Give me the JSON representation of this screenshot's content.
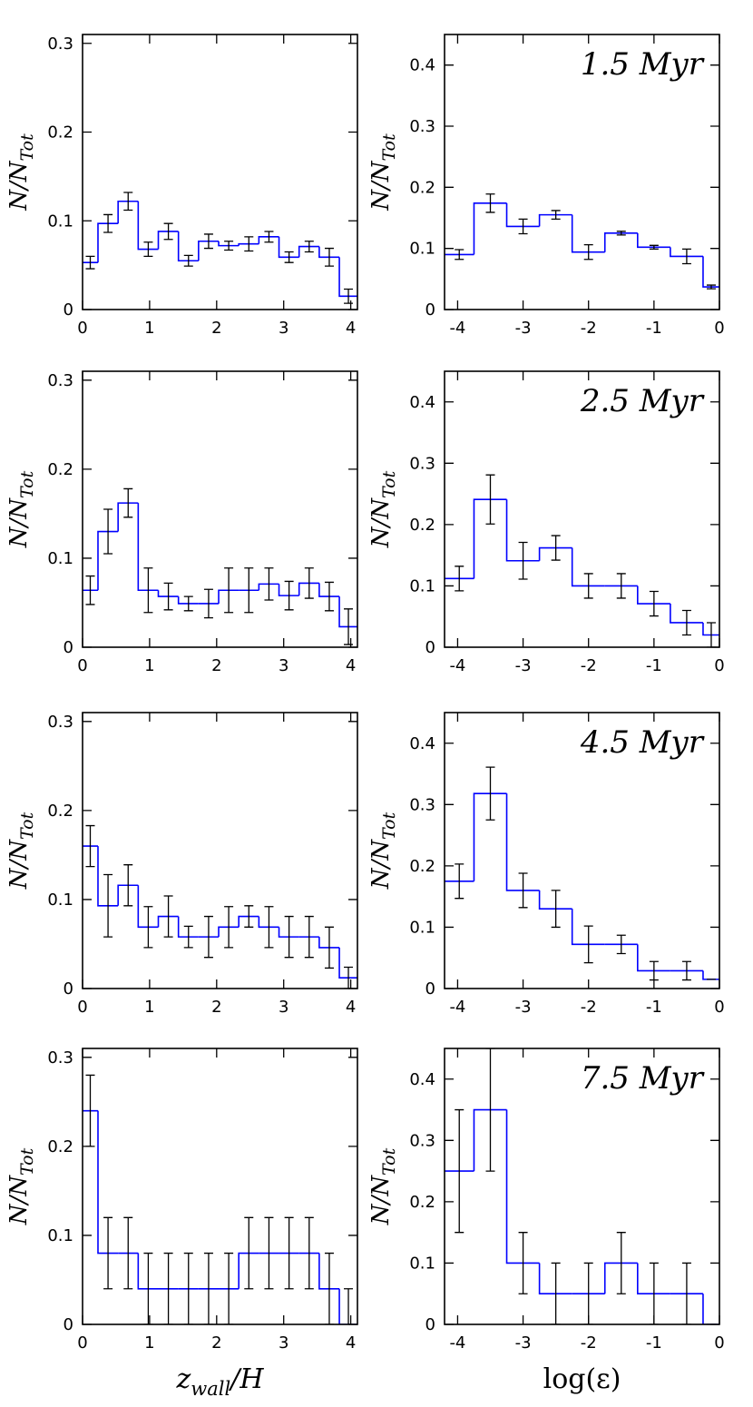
{
  "chart_data": [
    {
      "type": "histogram",
      "color": "#0000ff",
      "xlim": [
        0,
        4.1
      ],
      "xticks": [
        0,
        1,
        2,
        3,
        4
      ],
      "ylim": [
        0,
        0.31
      ],
      "yticks": [
        0,
        0.1,
        0.2,
        0.3
      ],
      "ylabel": "N/N",
      "ylabel_sub": "Tot",
      "bins": [
        0,
        0.23,
        0.53,
        0.83,
        1.13,
        1.43,
        1.73,
        2.03,
        2.33,
        2.63,
        2.93,
        3.23,
        3.53,
        3.83,
        4.1
      ],
      "values": [
        0.053,
        0.097,
        0.122,
        0.068,
        0.088,
        0.055,
        0.077,
        0.072,
        0.074,
        0.082,
        0.059,
        0.071,
        0.059,
        0.015
      ],
      "errors": [
        0.007,
        0.01,
        0.01,
        0.008,
        0.009,
        0.006,
        0.008,
        0.005,
        0.008,
        0.006,
        0.006,
        0.006,
        0.01,
        0.008
      ]
    },
    {
      "type": "histogram",
      "color": "#0000ff",
      "xlim": [
        -4.2,
        0
      ],
      "xticks": [
        -4,
        -3,
        -2,
        -1,
        0
      ],
      "ylim": [
        0,
        0.45
      ],
      "yticks": [
        0,
        0.1,
        0.2,
        0.3,
        0.4
      ],
      "ylabel": "N/N",
      "ylabel_sub": "Tot",
      "annotation": "1.5 Myr",
      "bins": [
        -4.2,
        -3.75,
        -3.25,
        -2.75,
        -2.25,
        -1.75,
        -1.25,
        -0.75,
        -0.25,
        0
      ],
      "values": [
        0.09,
        0.174,
        0.136,
        0.155,
        0.094,
        0.125,
        0.102,
        0.087,
        0.037
      ],
      "errors": [
        0.008,
        0.015,
        0.012,
        0.007,
        0.012,
        0.003,
        0.003,
        0.012,
        0.003
      ]
    },
    {
      "type": "histogram",
      "color": "#0000ff",
      "xlim": [
        0,
        4.1
      ],
      "xticks": [
        0,
        1,
        2,
        3,
        4
      ],
      "ylim": [
        0,
        0.31
      ],
      "yticks": [
        0,
        0.1,
        0.2,
        0.3
      ],
      "ylabel": "N/N",
      "ylabel_sub": "Tot",
      "bins": [
        0,
        0.23,
        0.53,
        0.83,
        1.13,
        1.43,
        1.73,
        2.03,
        2.33,
        2.63,
        2.93,
        3.23,
        3.53,
        3.83,
        4.1
      ],
      "values": [
        0.064,
        0.13,
        0.162,
        0.064,
        0.057,
        0.049,
        0.049,
        0.064,
        0.064,
        0.071,
        0.058,
        0.072,
        0.057,
        0.023
      ],
      "errors": [
        0.016,
        0.025,
        0.016,
        0.025,
        0.015,
        0.008,
        0.016,
        0.025,
        0.025,
        0.018,
        0.016,
        0.017,
        0.016,
        0.02
      ]
    },
    {
      "type": "histogram",
      "color": "#0000ff",
      "xlim": [
        -4.2,
        0
      ],
      "xticks": [
        -4,
        -3,
        -2,
        -1,
        0
      ],
      "ylim": [
        0,
        0.45
      ],
      "yticks": [
        0,
        0.1,
        0.2,
        0.3,
        0.4
      ],
      "ylabel": "N/N",
      "ylabel_sub": "Tot",
      "annotation": "2.5 Myr",
      "bins": [
        -4.2,
        -3.75,
        -3.25,
        -2.75,
        -2.25,
        -1.75,
        -1.25,
        -0.75,
        -0.25,
        0
      ],
      "values": [
        0.112,
        0.241,
        0.141,
        0.162,
        0.1,
        0.1,
        0.071,
        0.04,
        0.02
      ],
      "errors": [
        0.02,
        0.04,
        0.03,
        0.02,
        0.02,
        0.02,
        0.02,
        0.02,
        0.02
      ]
    },
    {
      "type": "histogram",
      "color": "#0000ff",
      "xlim": [
        0,
        4.1
      ],
      "xticks": [
        0,
        1,
        2,
        3,
        4
      ],
      "ylim": [
        0,
        0.31
      ],
      "yticks": [
        0,
        0.1,
        0.2,
        0.3
      ],
      "ylabel": "N/N",
      "ylabel_sub": "Tot",
      "bins": [
        0,
        0.23,
        0.53,
        0.83,
        1.13,
        1.43,
        1.73,
        2.03,
        2.33,
        2.63,
        2.93,
        3.23,
        3.53,
        3.83,
        4.1
      ],
      "values": [
        0.16,
        0.093,
        0.116,
        0.069,
        0.081,
        0.058,
        0.058,
        0.069,
        0.081,
        0.069,
        0.058,
        0.058,
        0.046,
        0.012
      ],
      "errors": [
        0.023,
        0.035,
        0.023,
        0.023,
        0.023,
        0.012,
        0.023,
        0.023,
        0.012,
        0.023,
        0.023,
        0.023,
        0.023,
        0.012
      ]
    },
    {
      "type": "histogram",
      "color": "#0000ff",
      "xlim": [
        -4.2,
        0
      ],
      "xticks": [
        -4,
        -3,
        -2,
        -1,
        0
      ],
      "ylim": [
        0,
        0.45
      ],
      "yticks": [
        0,
        0.1,
        0.2,
        0.3,
        0.4
      ],
      "ylabel": "N/N",
      "ylabel_sub": "Tot",
      "annotation": "4.5 Myr",
      "bins": [
        -4.2,
        -3.75,
        -3.25,
        -2.75,
        -2.25,
        -1.75,
        -1.25,
        -0.75,
        -0.25,
        0
      ],
      "values": [
        0.175,
        0.318,
        0.16,
        0.13,
        0.072,
        0.072,
        0.029,
        0.029,
        0.015
      ],
      "errors": [
        0.028,
        0.043,
        0.028,
        0.03,
        0.03,
        0.015,
        0.015,
        0.015,
        0
      ]
    },
    {
      "type": "histogram",
      "color": "#0000ff",
      "xlim": [
        0,
        4.1
      ],
      "xticks": [
        0,
        1,
        2,
        3,
        4
      ],
      "ylim": [
        0,
        0.31
      ],
      "yticks": [
        0,
        0.1,
        0.2,
        0.3
      ],
      "ylabel": "N/N",
      "ylabel_sub": "Tot",
      "xlabel": [
        {
          "text": "z"
        },
        {
          "text": "wall",
          "sub": true
        },
        {
          "text": "/H"
        }
      ],
      "bins": [
        0,
        0.23,
        0.53,
        0.83,
        1.13,
        1.43,
        1.73,
        2.03,
        2.33,
        2.63,
        2.93,
        3.23,
        3.53,
        3.83,
        4.1
      ],
      "values": [
        0.24,
        0.08,
        0.08,
        0.04,
        0.04,
        0.04,
        0.04,
        0.04,
        0.08,
        0.08,
        0.08,
        0.08,
        0.04,
        0
      ],
      "errors": [
        0.04,
        0.04,
        0.04,
        0.04,
        0.04,
        0.04,
        0.04,
        0.04,
        0.04,
        0.04,
        0.04,
        0.04,
        0.04,
        0.04
      ]
    },
    {
      "type": "histogram",
      "color": "#0000ff",
      "xlim": [
        -4.2,
        0
      ],
      "xticks": [
        -4,
        -3,
        -2,
        -1,
        0
      ],
      "ylim": [
        0,
        0.45
      ],
      "yticks": [
        0,
        0.1,
        0.2,
        0.3,
        0.4
      ],
      "ylabel": "N/N",
      "ylabel_sub": "Tot",
      "annotation": "7.5 Myr",
      "xlabel": [
        {
          "text": "log(ε)"
        }
      ],
      "bins": [
        -4.2,
        -3.75,
        -3.25,
        -2.75,
        -2.25,
        -1.75,
        -1.25,
        -0.75,
        -0.25,
        0
      ],
      "values": [
        0.25,
        0.35,
        0.1,
        0.05,
        0.05,
        0.1,
        0.05,
        0.05,
        0
      ],
      "errors": [
        0.1,
        0.1,
        0.05,
        0.05,
        0.05,
        0.05,
        0.05,
        0.05,
        0
      ]
    }
  ]
}
